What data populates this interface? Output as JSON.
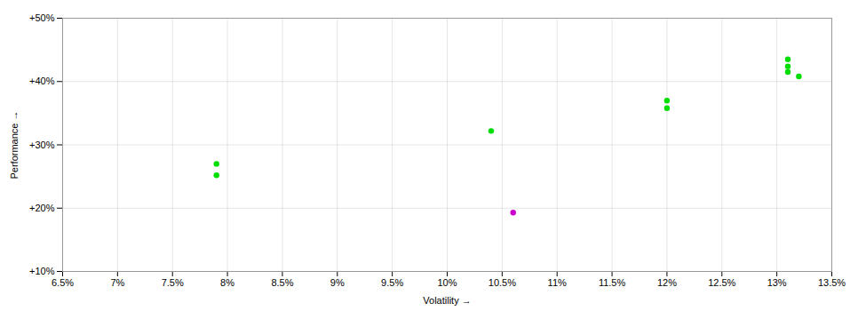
{
  "chart_data": {
    "type": "scatter",
    "xlabel": "Volatility",
    "ylabel": "Performance",
    "xlim": [
      0.065,
      0.135
    ],
    "ylim": [
      0.1,
      0.5
    ],
    "xticks": [
      {
        "value": 0.065,
        "label": "6.5%"
      },
      {
        "value": 0.07,
        "label": "7%"
      },
      {
        "value": 0.075,
        "label": "7.5%"
      },
      {
        "value": 0.08,
        "label": "8%"
      },
      {
        "value": 0.085,
        "label": "8.5%"
      },
      {
        "value": 0.09,
        "label": "9%"
      },
      {
        "value": 0.095,
        "label": "9.5%"
      },
      {
        "value": 0.1,
        "label": "10%"
      },
      {
        "value": 0.105,
        "label": "10.5%"
      },
      {
        "value": 0.11,
        "label": "11%"
      },
      {
        "value": 0.115,
        "label": "11.5%"
      },
      {
        "value": 0.12,
        "label": "12%"
      },
      {
        "value": 0.125,
        "label": "12.5%"
      },
      {
        "value": 0.13,
        "label": "13%"
      },
      {
        "value": 0.135,
        "label": "13.5%"
      }
    ],
    "yticks": [
      {
        "value": 0.1,
        "label": "+10%"
      },
      {
        "value": 0.2,
        "label": "+20%"
      },
      {
        "value": 0.3,
        "label": "+30%"
      },
      {
        "value": 0.4,
        "label": "+40%"
      },
      {
        "value": 0.5,
        "label": "+50%"
      }
    ],
    "grid": true,
    "series": [
      {
        "color": "#00dd00",
        "x": [
          0.079,
          0.079,
          0.104,
          0.12,
          0.12,
          0.131,
          0.131,
          0.131,
          0.132
        ],
        "y": [
          0.27,
          0.252,
          0.322,
          0.37,
          0.358,
          0.435,
          0.424,
          0.415,
          0.408
        ]
      },
      {
        "color": "#cc00cc",
        "x": [
          0.106
        ],
        "y": [
          0.193
        ]
      }
    ]
  }
}
